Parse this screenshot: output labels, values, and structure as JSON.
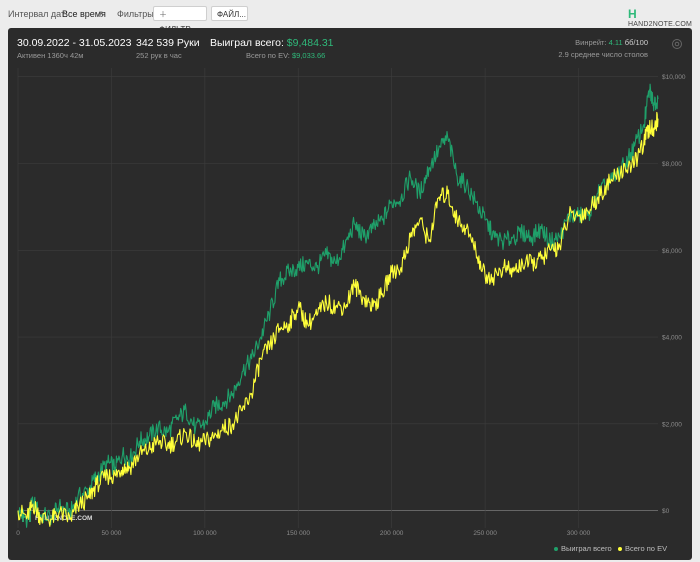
{
  "topbar": {
    "date_interval_label": "Интервал дат:",
    "date_interval_value": "Все время",
    "filters_label": "Фильтры:",
    "filters_button": "ФИЛЬТР...",
    "file_button": "ФАЙЛ...",
    "logo_text": "HAND2NOTE.COM"
  },
  "header": {
    "date_range": "30.09.2022 - 31.05.2023",
    "active_time": "Активен 1360ч 42м",
    "hands": "342 539 Руки",
    "hands_per_hour": "252 рук в час",
    "won_total_label": "Выиграл всего:",
    "won_total_value": "$9,484.31",
    "ev_total_label": "Всего по EV:",
    "ev_total_value": "$9,033.66",
    "winrate_label": "Винрейт:",
    "winrate_value": "4.11",
    "winrate_unit": "бб/100",
    "tables_text": "2.9 среднее число столов"
  },
  "watermark": "HAND2NOTE.COM",
  "colors": {
    "won": "#1fa06a",
    "ev": "#ffff3a",
    "background": "#2b2b2b",
    "grid": "#3d3d3d",
    "zero_line": "#8a8a8a"
  },
  "chart_data": {
    "type": "line",
    "x_ticks": [
      0,
      50000,
      100000,
      150000,
      200000,
      250000,
      300000
    ],
    "x_tick_labels": [
      "0",
      "50 000",
      "100 000",
      "150 000",
      "200 000",
      "250 000",
      "300 000"
    ],
    "y_ticks": [
      0,
      2000,
      4000,
      6000,
      8000,
      10000
    ],
    "y_tick_labels": [
      "$0",
      "$2,000",
      "$4,000",
      "$6,000",
      "$8,000",
      "$10,000"
    ],
    "xlim": [
      0,
      342539
    ],
    "ylim": [
      -400,
      10200
    ],
    "grid": true,
    "legend_position": "bottom-right",
    "series": [
      {
        "name": "Выиграл всего",
        "color": "#1fa06a",
        "points": [
          [
            0,
            0
          ],
          [
            5000,
            -200
          ],
          [
            8000,
            200
          ],
          [
            12000,
            -100
          ],
          [
            18000,
            -150
          ],
          [
            22000,
            100
          ],
          [
            28000,
            -50
          ],
          [
            32000,
            300
          ],
          [
            38000,
            500
          ],
          [
            42000,
            800
          ],
          [
            48000,
            1100
          ],
          [
            52000,
            1000
          ],
          [
            56000,
            1300
          ],
          [
            60000,
            1200
          ],
          [
            65000,
            1600
          ],
          [
            70000,
            1700
          ],
          [
            75000,
            1900
          ],
          [
            80000,
            1800
          ],
          [
            85000,
            2100
          ],
          [
            90000,
            2300
          ],
          [
            95000,
            1900
          ],
          [
            100000,
            2000
          ],
          [
            105000,
            2400
          ],
          [
            110000,
            2500
          ],
          [
            115000,
            2700
          ],
          [
            120000,
            3200
          ],
          [
            125000,
            3500
          ],
          [
            130000,
            4000
          ],
          [
            135000,
            4600
          ],
          [
            140000,
            5300
          ],
          [
            145000,
            5500
          ],
          [
            150000,
            5600
          ],
          [
            155000,
            5700
          ],
          [
            160000,
            5600
          ],
          [
            165000,
            5900
          ],
          [
            170000,
            5700
          ],
          [
            175000,
            6100
          ],
          [
            180000,
            6600
          ],
          [
            185000,
            6300
          ],
          [
            190000,
            6500
          ],
          [
            195000,
            6700
          ],
          [
            200000,
            7100
          ],
          [
            205000,
            7200
          ],
          [
            210000,
            7700
          ],
          [
            215000,
            7300
          ],
          [
            220000,
            7900
          ],
          [
            225000,
            8300
          ],
          [
            230000,
            8600
          ],
          [
            235000,
            7700
          ],
          [
            240000,
            7500
          ],
          [
            245000,
            7100
          ],
          [
            250000,
            6700
          ],
          [
            255000,
            6300
          ],
          [
            260000,
            6200
          ],
          [
            265000,
            6300
          ],
          [
            270000,
            6400
          ],
          [
            275000,
            6300
          ],
          [
            280000,
            6500
          ],
          [
            285000,
            6200
          ],
          [
            290000,
            6300
          ],
          [
            295000,
            6800
          ],
          [
            300000,
            6800
          ],
          [
            305000,
            6800
          ],
          [
            310000,
            7300
          ],
          [
            315000,
            7500
          ],
          [
            320000,
            7700
          ],
          [
            325000,
            8000
          ],
          [
            330000,
            8400
          ],
          [
            335000,
            8900
          ],
          [
            338000,
            9700
          ],
          [
            340000,
            9400
          ],
          [
            342539,
            9484
          ]
        ]
      },
      {
        "name": "Всего по EV",
        "color": "#ffff3a",
        "points": [
          [
            0,
            0
          ],
          [
            5000,
            -150
          ],
          [
            8000,
            150
          ],
          [
            12000,
            -150
          ],
          [
            18000,
            -200
          ],
          [
            22000,
            -50
          ],
          [
            28000,
            -200
          ],
          [
            32000,
            100
          ],
          [
            38000,
            300
          ],
          [
            42000,
            600
          ],
          [
            48000,
            800
          ],
          [
            52000,
            800
          ],
          [
            56000,
            1000
          ],
          [
            60000,
            1000
          ],
          [
            65000,
            1300
          ],
          [
            70000,
            1400
          ],
          [
            75000,
            1600
          ],
          [
            80000,
            1500
          ],
          [
            85000,
            1600
          ],
          [
            90000,
            1800
          ],
          [
            95000,
            1500
          ],
          [
            100000,
            1600
          ],
          [
            105000,
            1700
          ],
          [
            110000,
            1900
          ],
          [
            115000,
            2000
          ],
          [
            120000,
            2300
          ],
          [
            125000,
            2700
          ],
          [
            130000,
            3500
          ],
          [
            135000,
            3800
          ],
          [
            140000,
            4200
          ],
          [
            145000,
            4300
          ],
          [
            150000,
            4700
          ],
          [
            155000,
            4300
          ],
          [
            160000,
            4500
          ],
          [
            165000,
            4800
          ],
          [
            170000,
            4700
          ],
          [
            175000,
            4700
          ],
          [
            180000,
            5200
          ],
          [
            185000,
            4900
          ],
          [
            190000,
            4700
          ],
          [
            195000,
            5000
          ],
          [
            200000,
            5500
          ],
          [
            205000,
            5600
          ],
          [
            210000,
            6300
          ],
          [
            215000,
            6700
          ],
          [
            220000,
            6200
          ],
          [
            225000,
            7200
          ],
          [
            230000,
            7300
          ],
          [
            235000,
            6700
          ],
          [
            240000,
            6500
          ],
          [
            245000,
            6000
          ],
          [
            250000,
            5400
          ],
          [
            255000,
            5400
          ],
          [
            260000,
            5600
          ],
          [
            265000,
            5500
          ],
          [
            270000,
            5700
          ],
          [
            275000,
            5700
          ],
          [
            280000,
            5800
          ],
          [
            285000,
            6000
          ],
          [
            290000,
            6100
          ],
          [
            295000,
            6800
          ],
          [
            300000,
            6800
          ],
          [
            305000,
            6900
          ],
          [
            310000,
            7200
          ],
          [
            315000,
            7500
          ],
          [
            320000,
            7700
          ],
          [
            325000,
            7900
          ],
          [
            330000,
            8000
          ],
          [
            335000,
            8500
          ],
          [
            338000,
            8800
          ],
          [
            340000,
            8800
          ],
          [
            342539,
            9034
          ]
        ]
      }
    ]
  }
}
